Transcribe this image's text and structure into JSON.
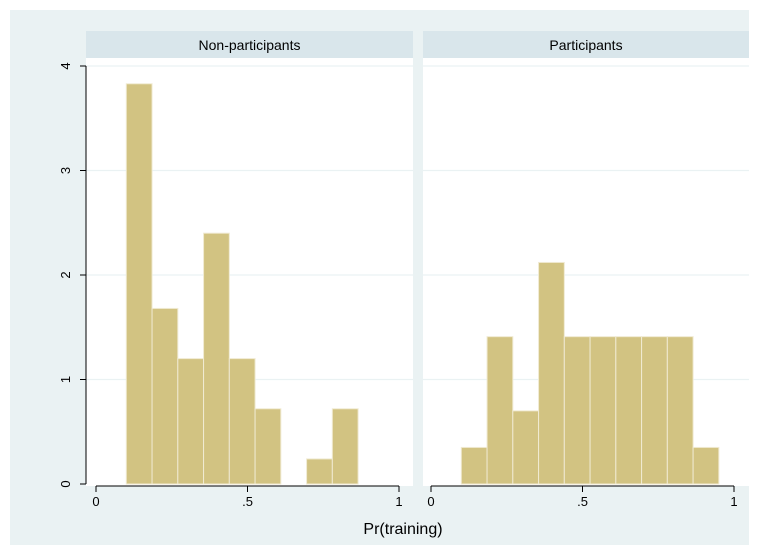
{
  "chart_data": {
    "type": "histogram",
    "xlabel": "Pr(training)",
    "ylabel": "",
    "ylim": [
      0,
      4
    ],
    "xlim": [
      0,
      1
    ],
    "bin_width": 0.085,
    "y_ticks": [
      {
        "value": 0,
        "label": "0"
      },
      {
        "value": 1,
        "label": "1"
      },
      {
        "value": 2,
        "label": "2"
      },
      {
        "value": 3,
        "label": "3"
      },
      {
        "value": 4,
        "label": "4"
      }
    ],
    "x_ticks": [
      {
        "value": 0,
        "label": "0"
      },
      {
        "value": 0.5,
        "label": ".5"
      },
      {
        "value": 1,
        "label": "1"
      }
    ],
    "grid": "horizontal",
    "colors": {
      "outer_background": "#eaf2f3",
      "plot_background": "#ffffff",
      "header_background": "#d9e6eb",
      "bar_fill": "#d2c382",
      "bar_stroke": "#f0ead2",
      "gridline": "#eaf2f3",
      "axis_line": "#000000"
    },
    "panels": [
      {
        "title": "Non-participants",
        "bins": [
          {
            "x0": 0.1,
            "x1": 0.185,
            "density": 3.83
          },
          {
            "x0": 0.185,
            "x1": 0.27,
            "density": 1.68
          },
          {
            "x0": 0.27,
            "x1": 0.355,
            "density": 1.2
          },
          {
            "x0": 0.355,
            "x1": 0.44,
            "density": 2.4
          },
          {
            "x0": 0.44,
            "x1": 0.525,
            "density": 1.2
          },
          {
            "x0": 0.525,
            "x1": 0.61,
            "density": 0.72
          },
          {
            "x0": 0.61,
            "x1": 0.695,
            "density": 0
          },
          {
            "x0": 0.695,
            "x1": 0.78,
            "density": 0.24
          },
          {
            "x0": 0.78,
            "x1": 0.865,
            "density": 0.72
          }
        ]
      },
      {
        "title": "Participants",
        "bins": [
          {
            "x0": 0.1,
            "x1": 0.185,
            "density": 0.35
          },
          {
            "x0": 0.185,
            "x1": 0.27,
            "density": 1.41
          },
          {
            "x0": 0.27,
            "x1": 0.355,
            "density": 0.7
          },
          {
            "x0": 0.355,
            "x1": 0.44,
            "density": 2.12
          },
          {
            "x0": 0.44,
            "x1": 0.525,
            "density": 1.41
          },
          {
            "x0": 0.525,
            "x1": 0.61,
            "density": 1.41
          },
          {
            "x0": 0.61,
            "x1": 0.695,
            "density": 1.41
          },
          {
            "x0": 0.695,
            "x1": 0.78,
            "density": 1.41
          },
          {
            "x0": 0.78,
            "x1": 0.865,
            "density": 1.41
          },
          {
            "x0": 0.865,
            "x1": 0.95,
            "density": 0.35
          }
        ]
      }
    ]
  }
}
